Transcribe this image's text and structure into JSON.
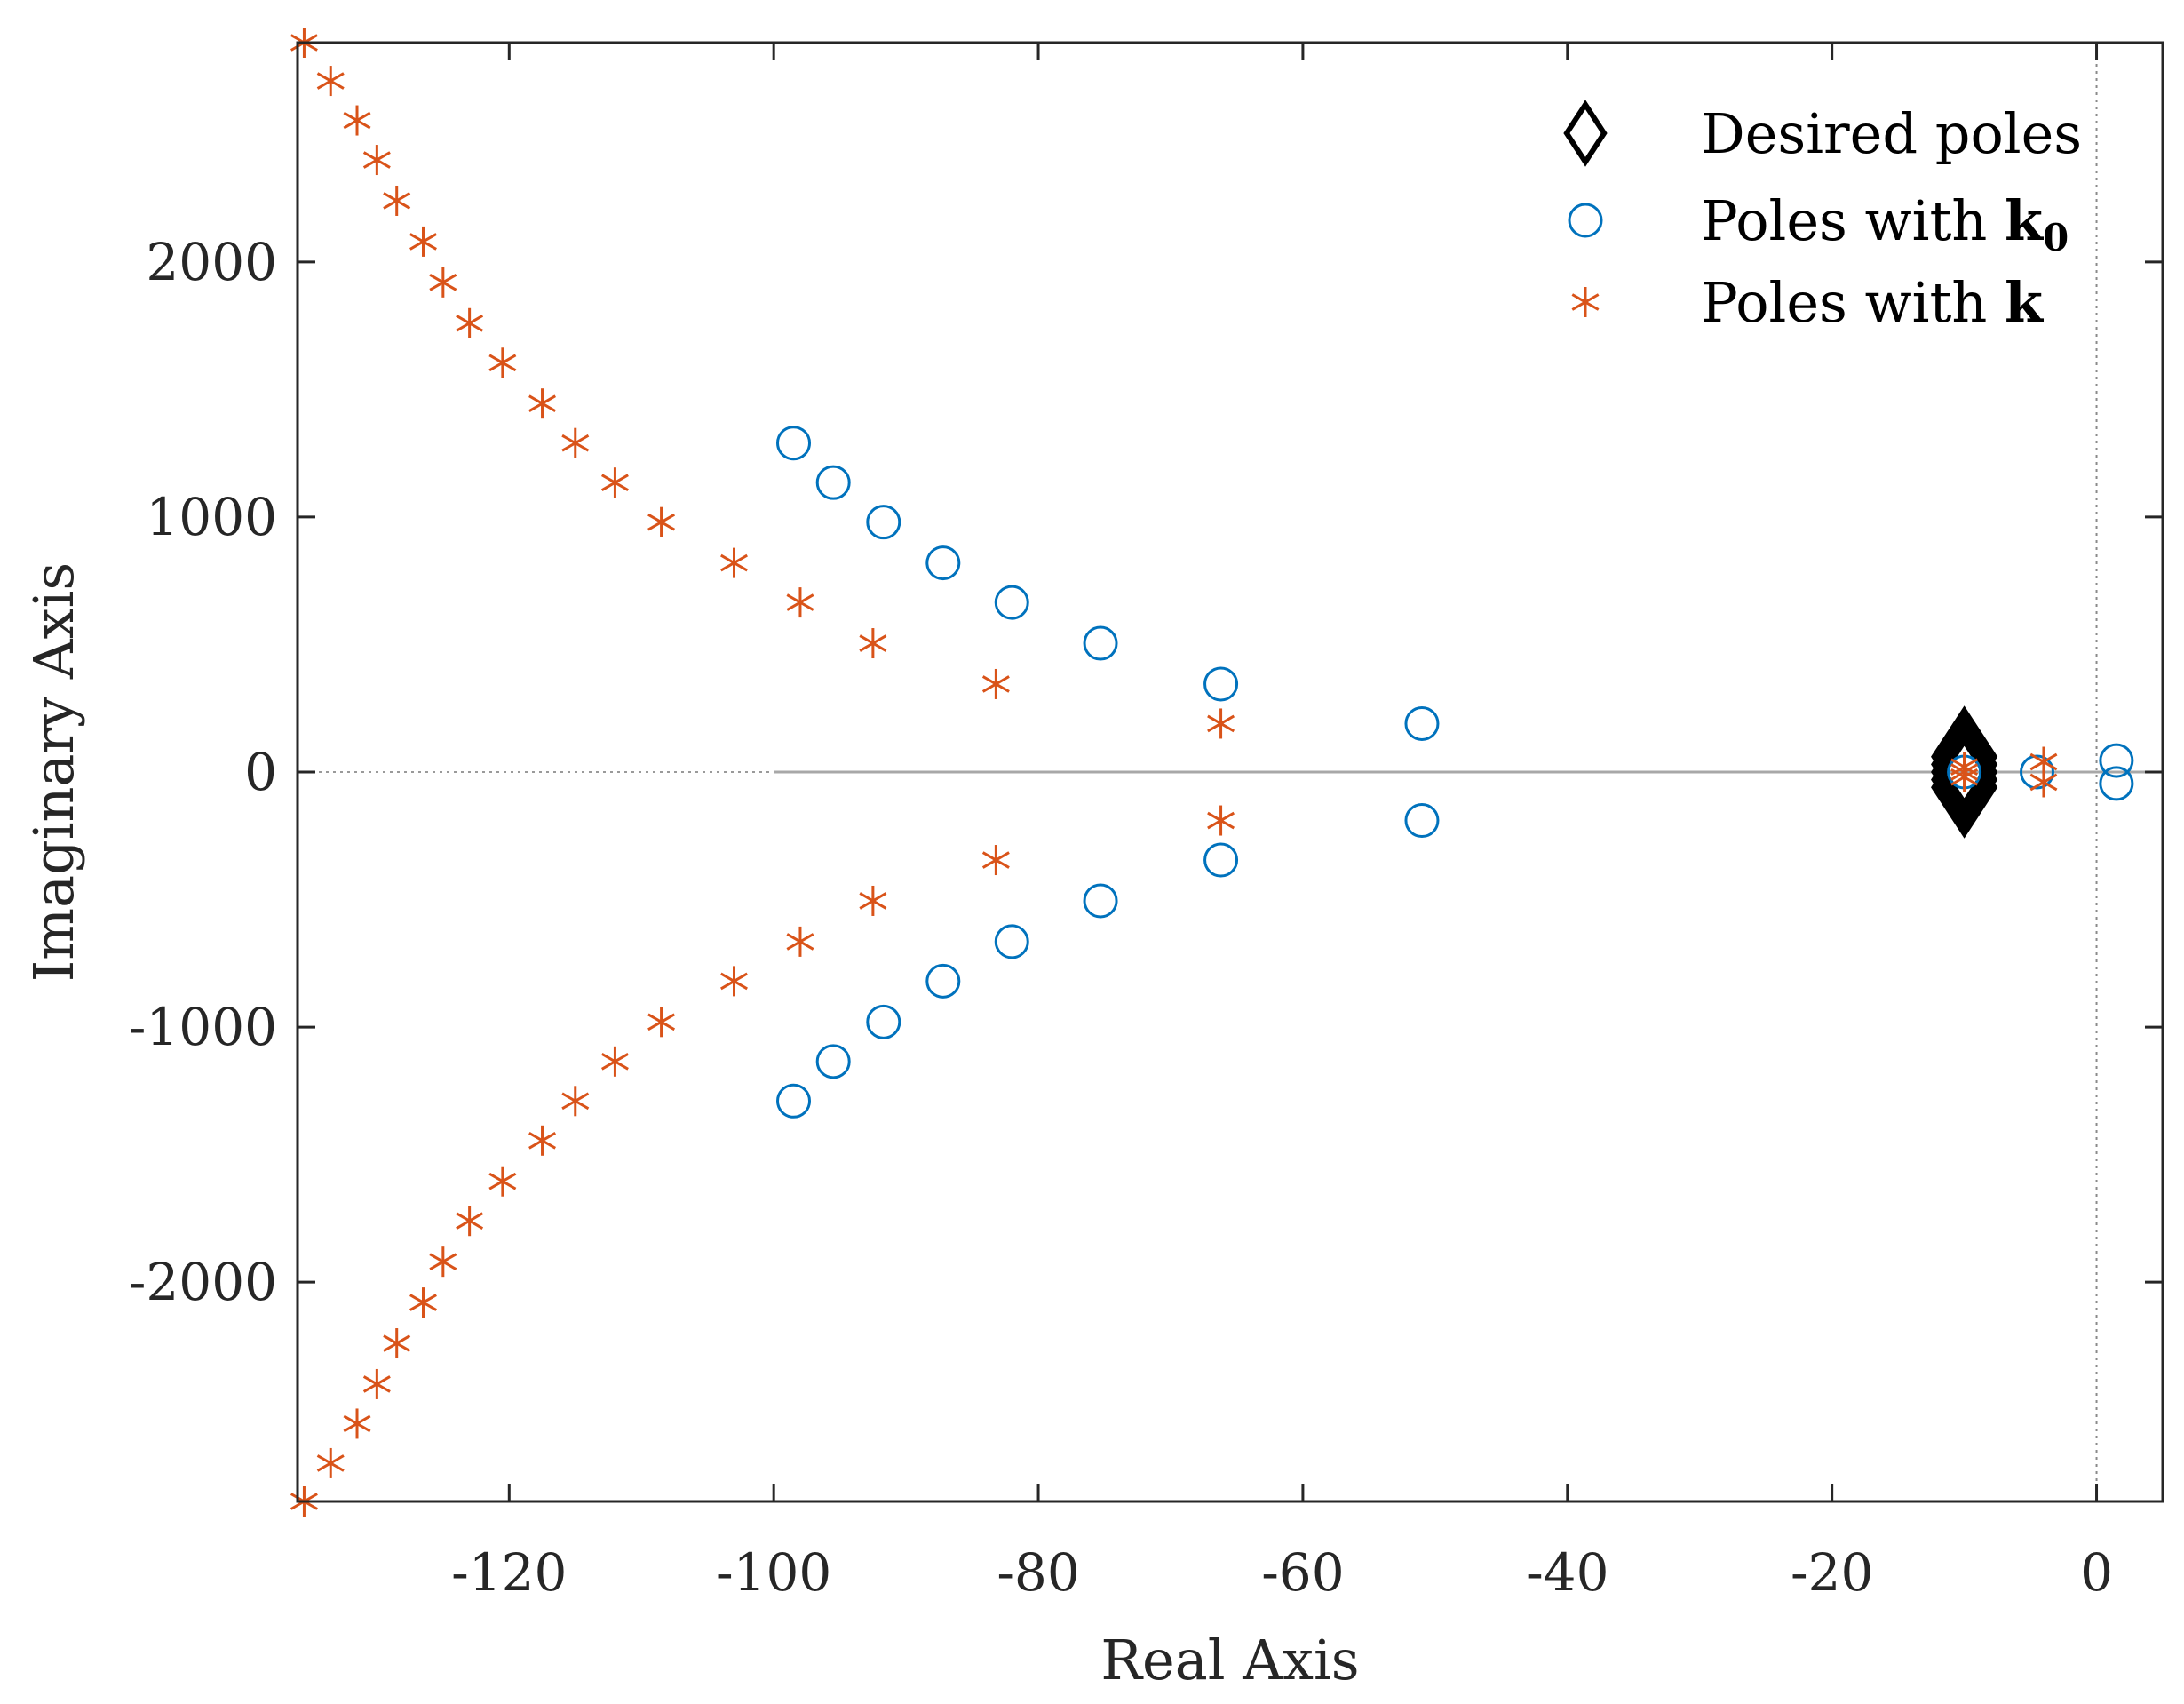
{
  "chart_data": {
    "type": "scatter",
    "title": "",
    "xlabel": "Real Axis",
    "ylabel": "Imaginary Axis",
    "xlim": [
      -136,
      5
    ],
    "ylim": [
      -2860,
      2860
    ],
    "xticks": [
      -120,
      -100,
      -80,
      -60,
      -40,
      -20,
      0
    ],
    "xtick_labels": [
      "-120",
      "-100",
      "-80",
      "-60",
      "-40",
      "-20",
      "0"
    ],
    "yticks": [
      -2000,
      -1000,
      0,
      1000,
      2000
    ],
    "ytick_labels": [
      "-2000",
      "-1000",
      "0",
      "1000",
      "2000"
    ],
    "grid": false,
    "legend_position": "top-right",
    "reference_lines": [
      {
        "orientation": "horizontal",
        "value": 0,
        "style": "dotted/solid gray"
      },
      {
        "orientation": "vertical",
        "value": 0,
        "style": "dotted gray"
      }
    ],
    "series": [
      {
        "name": "Desired poles",
        "legend_text": "Desired poles",
        "marker": "diamond",
        "color": "#000000",
        "points": [
          [
            -10,
            60
          ],
          [
            -10,
            30
          ],
          [
            -10,
            0
          ],
          [
            -10,
            -30
          ],
          [
            -10,
            -60
          ]
        ]
      },
      {
        "name": "Poles with k0",
        "legend_text": "Poles with ",
        "legend_bold": "k",
        "legend_subscript": "0",
        "marker": "circle",
        "color": "#0072BD",
        "points": [
          [
            -98.5,
            1290
          ],
          [
            -95.5,
            1135
          ],
          [
            -91.7,
            980
          ],
          [
            -87.2,
            820
          ],
          [
            -82,
            665
          ],
          [
            -75.3,
            505
          ],
          [
            -66.2,
            345
          ],
          [
            -51,
            190
          ],
          [
            -98.5,
            -1290
          ],
          [
            -95.5,
            -1135
          ],
          [
            -91.7,
            -980
          ],
          [
            -87.2,
            -820
          ],
          [
            -82,
            -665
          ],
          [
            -75.3,
            -505
          ],
          [
            -66.2,
            -345
          ],
          [
            -51,
            -190
          ],
          [
            -10,
            0
          ],
          [
            -4.5,
            0
          ],
          [
            1.5,
            45
          ],
          [
            1.5,
            -45
          ]
        ]
      },
      {
        "name": "Poles with k",
        "legend_text": "Poles with ",
        "legend_bold": "k",
        "marker": "asterisk",
        "color": "#D95319",
        "points": [
          [
            -135.5,
            2860
          ],
          [
            -133.5,
            2710
          ],
          [
            -131.5,
            2555
          ],
          [
            -130,
            2400
          ],
          [
            -128.5,
            2240
          ],
          [
            -126.5,
            2080
          ],
          [
            -125,
            1920
          ],
          [
            -123,
            1760
          ],
          [
            -120.5,
            1605
          ],
          [
            -117.5,
            1445
          ],
          [
            -115,
            1290
          ],
          [
            -112,
            1135
          ],
          [
            -108.5,
            980
          ],
          [
            -103,
            820
          ],
          [
            -98,
            665
          ],
          [
            -92.5,
            505
          ],
          [
            -83.2,
            345
          ],
          [
            -66.2,
            190
          ],
          [
            -135.5,
            -2860
          ],
          [
            -133.5,
            -2710
          ],
          [
            -131.5,
            -2555
          ],
          [
            -130,
            -2400
          ],
          [
            -128.5,
            -2240
          ],
          [
            -126.5,
            -2080
          ],
          [
            -125,
            -1920
          ],
          [
            -123,
            -1760
          ],
          [
            -120.5,
            -1605
          ],
          [
            -117.5,
            -1445
          ],
          [
            -115,
            -1290
          ],
          [
            -112,
            -1135
          ],
          [
            -108.5,
            -980
          ],
          [
            -103,
            -820
          ],
          [
            -98,
            -665
          ],
          [
            -92.5,
            -505
          ],
          [
            -83.2,
            -345
          ],
          [
            -66.2,
            -190
          ],
          [
            -10,
            20
          ],
          [
            -10,
            0
          ],
          [
            -10,
            -20
          ],
          [
            -4,
            40
          ],
          [
            -4,
            -40
          ]
        ]
      }
    ]
  }
}
